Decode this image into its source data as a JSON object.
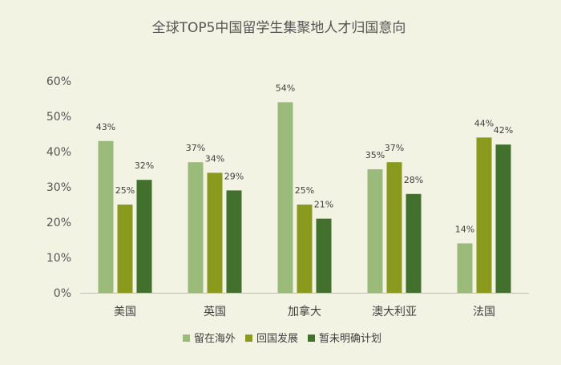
{
  "chart_data": {
    "type": "bar",
    "title": "全球TOP5中国留学生集聚地人才归国意向",
    "categories": [
      "美国",
      "英国",
      "加拿大",
      "澳大利亚",
      "法国"
    ],
    "series": [
      {
        "name": "留在海外",
        "color": "#9bbb7a",
        "values": [
          43,
          37,
          54,
          35,
          14
        ]
      },
      {
        "name": "回国发展",
        "color": "#8a9a1f",
        "values": [
          25,
          34,
          25,
          37,
          44
        ]
      },
      {
        "name": "暂未明确计划",
        "color": "#42712d",
        "values": [
          32,
          29,
          21,
          28,
          42
        ]
      }
    ],
    "y_ticks": [
      "0%",
      "10%",
      "20%",
      "30%",
      "40%",
      "50%",
      "60%"
    ],
    "ylim": [
      0,
      60
    ],
    "value_suffix": "%",
    "legend_position": "bottom",
    "grid": false
  }
}
